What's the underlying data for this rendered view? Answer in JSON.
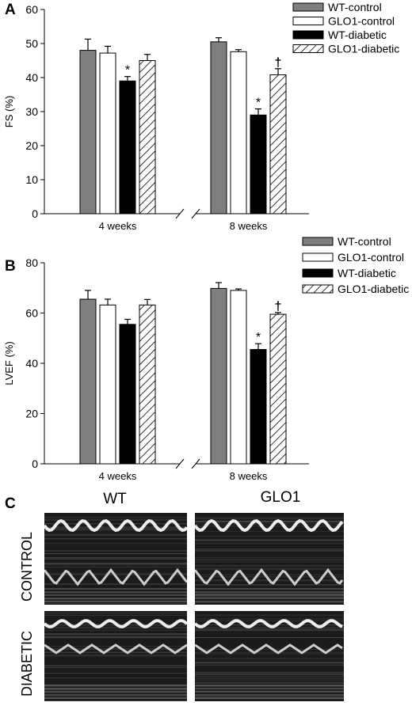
{
  "panels": {
    "a": {
      "letter": "A"
    },
    "b": {
      "letter": "B"
    },
    "c": {
      "letter": "C",
      "col_titles": [
        "WT",
        "GLO1"
      ],
      "row_labels": [
        "CONTROL",
        "DIABETIC"
      ]
    }
  },
  "colors": {
    "WT-control": "#7f7f7f",
    "GLO1-control": "#ffffff",
    "WT-diabetic": "#000000",
    "GLO1-diabetic": "hatched"
  },
  "chart_data": [
    {
      "type": "bar",
      "ylabel": "FS (%)",
      "ylim": [
        0,
        60
      ],
      "yticks": [
        0,
        10,
        20,
        30,
        40,
        50,
        60
      ],
      "categories": [
        "4 weeks",
        "8 weeks"
      ],
      "legend_position": "top-right",
      "axis_break": "between 4 weeks and 8 weeks",
      "series": [
        {
          "name": "WT-control",
          "values": [
            48,
            50.5
          ],
          "error": [
            3.3,
            1.2
          ],
          "marks": [
            "",
            ""
          ]
        },
        {
          "name": "GLO1-control",
          "values": [
            47.2,
            47.6
          ],
          "error": [
            2.0,
            0.6
          ],
          "marks": [
            "",
            ""
          ]
        },
        {
          "name": "WT-diabetic",
          "values": [
            39,
            29
          ],
          "error": [
            1.3,
            1.8
          ],
          "marks": [
            "*",
            "*"
          ]
        },
        {
          "name": "GLO1-diabetic",
          "values": [
            45,
            40.8
          ],
          "error": [
            1.8,
            1.8
          ],
          "marks": [
            "",
            "†"
          ]
        }
      ]
    },
    {
      "type": "bar",
      "ylabel": "LVEF (%)",
      "ylim": [
        0,
        80
      ],
      "yticks": [
        0,
        20,
        40,
        60,
        80
      ],
      "categories": [
        "4 weeks",
        "8 weeks"
      ],
      "legend_position": "top-right",
      "axis_break": "between 4 weeks and 8 weeks",
      "series": [
        {
          "name": "WT-control",
          "values": [
            65.5,
            69.8
          ],
          "error": [
            3.5,
            2.3
          ],
          "marks": [
            "",
            ""
          ]
        },
        {
          "name": "GLO1-control",
          "values": [
            63.2,
            69
          ],
          "error": [
            2.3,
            0.6
          ],
          "marks": [
            "",
            ""
          ]
        },
        {
          "name": "WT-diabetic",
          "values": [
            55.5,
            45.5
          ],
          "error": [
            2.0,
            2.3
          ],
          "marks": [
            "",
            "*"
          ]
        },
        {
          "name": "GLO1-diabetic",
          "values": [
            63.2,
            59.5
          ],
          "error": [
            2.2,
            0.7
          ],
          "marks": [
            "",
            "†"
          ]
        }
      ]
    }
  ]
}
